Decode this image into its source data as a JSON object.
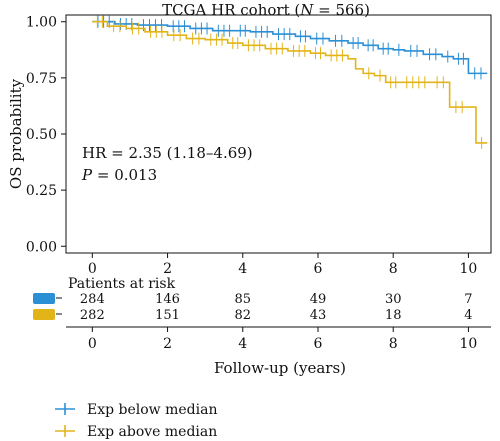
{
  "chart_data": {
    "type": "line",
    "subtype": "kaplan-meier",
    "title_parts": [
      "TCGA HR cohort (",
      "N",
      " = 566)"
    ],
    "xlabel": "Follow-up (years)",
    "ylabel": "OS probability",
    "xlim": [
      -0.7,
      10.6
    ],
    "ylim": [
      -0.03,
      1.03
    ],
    "xticks": [
      0,
      2,
      4,
      6,
      8,
      10
    ],
    "xtick_labels": [
      "0",
      "2",
      "4",
      "6",
      "8",
      "10"
    ],
    "yticks": [
      0,
      0.25,
      0.5,
      0.75,
      1.0
    ],
    "ytick_labels": [
      "0.00",
      "0.25",
      "0.50",
      "0.75",
      "1.00"
    ],
    "annotations": {
      "hr": "HR = 2.35 (1.18–4.69)",
      "p_symbol": "P",
      "p_rest": " = 0.013"
    },
    "series": [
      {
        "name": "Exp below median",
        "color": "#2b8fd6",
        "x": [
          0,
          0.6,
          1.2,
          2.0,
          2.6,
          3.2,
          3.8,
          4.2,
          4.8,
          5.4,
          5.8,
          6.3,
          6.8,
          7.2,
          7.6,
          8.0,
          8.3,
          8.8,
          9.3,
          9.6,
          10.0,
          10.5
        ],
        "y": [
          1.0,
          0.99,
          0.985,
          0.98,
          0.97,
          0.96,
          0.96,
          0.955,
          0.945,
          0.935,
          0.925,
          0.915,
          0.905,
          0.895,
          0.88,
          0.875,
          0.87,
          0.855,
          0.845,
          0.835,
          0.77,
          0.77
        ]
      },
      {
        "name": "Exp above median",
        "color": "#e3b418",
        "x": [
          0,
          0.4,
          0.9,
          1.4,
          2.0,
          2.5,
          3.0,
          3.6,
          4.0,
          4.6,
          5.2,
          5.8,
          6.2,
          6.8,
          7.0,
          7.2,
          7.5,
          7.8,
          8.2,
          9.0,
          9.5,
          10.0,
          10.2,
          10.5
        ],
        "y": [
          1.0,
          0.98,
          0.97,
          0.955,
          0.94,
          0.925,
          0.92,
          0.905,
          0.895,
          0.88,
          0.87,
          0.86,
          0.85,
          0.835,
          0.79,
          0.77,
          0.76,
          0.73,
          0.73,
          0.73,
          0.62,
          0.62,
          0.46,
          0.46
        ]
      }
    ],
    "risk_table": {
      "title": "Patients at risk",
      "times": [
        0,
        2,
        4,
        6,
        8,
        10
      ],
      "rows": [
        {
          "name": "Exp below median",
          "color": "#2b8fd6",
          "counts": [
            "284",
            "146",
            "85",
            "49",
            "30",
            "7"
          ]
        },
        {
          "name": "Exp above median",
          "color": "#e3b418",
          "counts": [
            "282",
            "151",
            "82",
            "43",
            "18",
            "4"
          ]
        }
      ]
    },
    "legend_position": "bottom-left"
  }
}
